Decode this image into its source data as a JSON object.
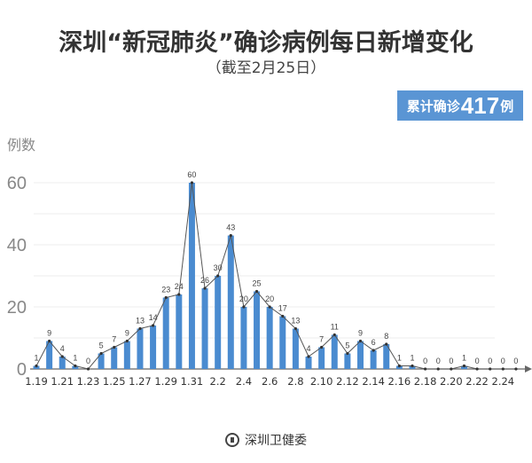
{
  "header": {
    "title": "深圳“新冠肺炎”确诊病例每日新增变化",
    "subtitle": "（截至2月25日）"
  },
  "badge": {
    "prefix": "累计确诊",
    "number": "417",
    "suffix": "例",
    "color": "#5a95d4"
  },
  "footer": {
    "source": "深圳卫健委"
  },
  "chart_data": {
    "type": "bar",
    "title": "深圳“新冠肺炎”确诊病例每日新增变化",
    "subtitle": "（截至2月25日）",
    "xlabel": "",
    "ylabel": "例数",
    "ylim": [
      0,
      60
    ],
    "yticks": [
      0,
      20,
      40,
      60
    ],
    "grid": true,
    "bar_color": "#4a8bd0",
    "line_overlay": true,
    "categories": [
      "1.19",
      "1.20",
      "1.21",
      "1.22",
      "1.23",
      "1.24",
      "1.25",
      "1.26",
      "1.27",
      "1.28",
      "1.29",
      "1.30",
      "1.31",
      "2.1",
      "2.2",
      "2.3",
      "2.4",
      "2.5",
      "2.6",
      "2.7",
      "2.8",
      "2.9",
      "2.10",
      "2.11",
      "2.12",
      "2.13",
      "2.14",
      "2.15",
      "2.16",
      "2.17",
      "2.18",
      "2.19",
      "2.20",
      "2.21",
      "2.22",
      "2.23",
      "2.24",
      "2.25"
    ],
    "xtick_labels": [
      "1.19",
      "1.21",
      "1.23",
      "1.25",
      "1.27",
      "1.29",
      "1.31",
      "2.2",
      "2.4",
      "2.6",
      "2.8",
      "2.10",
      "2.12",
      "2.14",
      "2.16",
      "2.18",
      "2.20",
      "2.22",
      "2.24"
    ],
    "values": [
      1,
      9,
      4,
      1,
      0,
      5,
      7,
      9,
      13,
      14,
      23,
      24,
      60,
      26,
      30,
      43,
      20,
      25,
      20,
      17,
      13,
      4,
      7,
      11,
      5,
      9,
      6,
      8,
      1,
      1,
      0,
      0,
      0,
      1,
      0,
      0,
      0,
      0
    ],
    "total_confirmed": 417
  }
}
